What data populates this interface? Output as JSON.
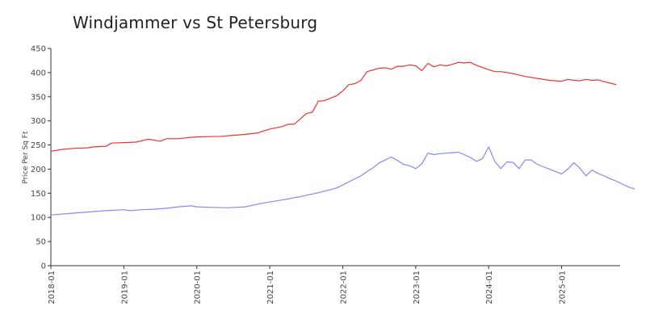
{
  "chart_data": {
    "type": "line",
    "title": "Windjammer vs St Petersburg",
    "xlabel": "",
    "ylabel": "Price Per Sq Ft",
    "ylim": [
      0,
      450
    ],
    "yticks": [
      0,
      50,
      100,
      150,
      200,
      250,
      300,
      350,
      400,
      450
    ],
    "xlim": [
      "2018-01",
      "2025-10"
    ],
    "xticks": [
      "2018-01",
      "2019-01",
      "2020-01",
      "2021-01",
      "2022-01",
      "2023-01",
      "2024-01",
      "2025-01"
    ],
    "grid": false,
    "legend": "none",
    "series": [
      {
        "color": "#ee3333",
        "points": [
          [
            "2018-01",
            237
          ],
          [
            "2018-03",
            241
          ],
          [
            "2018-05",
            243
          ],
          [
            "2018-07",
            244
          ],
          [
            "2018-08",
            246
          ],
          [
            "2018-10",
            247
          ],
          [
            "2018-11",
            254
          ],
          [
            "2019-01",
            255
          ],
          [
            "2019-03",
            256
          ],
          [
            "2019-05",
            262
          ],
          [
            "2019-07",
            258
          ],
          [
            "2019-08",
            263
          ],
          [
            "2019-10",
            263
          ],
          [
            "2019-12",
            266
          ],
          [
            "2020-02",
            267
          ],
          [
            "2020-05",
            268
          ],
          [
            "2020-07",
            270
          ],
          [
            "2020-09",
            272
          ],
          [
            "2020-11",
            275
          ],
          [
            "2021-01",
            283
          ],
          [
            "2021-03",
            288
          ],
          [
            "2021-04",
            293
          ],
          [
            "2021-05",
            293
          ],
          [
            "2021-07",
            315
          ],
          [
            "2021-08",
            318
          ],
          [
            "2021-09",
            341
          ],
          [
            "2021-10",
            342
          ],
          [
            "2021-11",
            347
          ],
          [
            "2021-12",
            352
          ],
          [
            "2022-01",
            362
          ],
          [
            "2022-02",
            375
          ],
          [
            "2022-03",
            377
          ],
          [
            "2022-04",
            384
          ],
          [
            "2022-05",
            402
          ],
          [
            "2022-07",
            409
          ],
          [
            "2022-08",
            410
          ],
          [
            "2022-09",
            407
          ],
          [
            "2022-10",
            413
          ],
          [
            "2022-11",
            413
          ],
          [
            "2022-12",
            416
          ],
          [
            "2023-01",
            414
          ],
          [
            "2023-02",
            404
          ],
          [
            "2023-03",
            419
          ],
          [
            "2023-04",
            412
          ],
          [
            "2023-05",
            416
          ],
          [
            "2023-06",
            414
          ],
          [
            "2023-07",
            417
          ],
          [
            "2023-08",
            421
          ],
          [
            "2023-09",
            420
          ],
          [
            "2023-10",
            421
          ],
          [
            "2023-11",
            415
          ],
          [
            "2024-01",
            406
          ],
          [
            "2024-02",
            402
          ],
          [
            "2024-03",
            402
          ],
          [
            "2024-05",
            398
          ],
          [
            "2024-07",
            392
          ],
          [
            "2024-09",
            388
          ],
          [
            "2024-11",
            384
          ],
          [
            "2025-01",
            382
          ],
          [
            "2025-02",
            386
          ],
          [
            "2025-03",
            384
          ],
          [
            "2025-04",
            383
          ],
          [
            "2025-05",
            386
          ],
          [
            "2025-06",
            384
          ],
          [
            "2025-07",
            385
          ],
          [
            "2025-08",
            381
          ],
          [
            "2025-09",
            378
          ],
          [
            "2025-10",
            375
          ]
        ]
      },
      {
        "color": "#8888ee",
        "points": [
          [
            "2018-01",
            105
          ],
          [
            "2018-04",
            108
          ],
          [
            "2018-07",
            111
          ],
          [
            "2018-10",
            114
          ],
          [
            "2019-01",
            116
          ],
          [
            "2019-02",
            114
          ],
          [
            "2019-04",
            116
          ],
          [
            "2019-06",
            117
          ],
          [
            "2019-08",
            119
          ],
          [
            "2019-10",
            122
          ],
          [
            "2019-12",
            124
          ],
          [
            "2020-01",
            122
          ],
          [
            "2020-03",
            121
          ],
          [
            "2020-06",
            120
          ],
          [
            "2020-09",
            122
          ],
          [
            "2020-12",
            130
          ],
          [
            "2021-03",
            136
          ],
          [
            "2021-06",
            143
          ],
          [
            "2021-09",
            151
          ],
          [
            "2021-12",
            161
          ],
          [
            "2022-03",
            180
          ],
          [
            "2022-04",
            186
          ],
          [
            "2022-05",
            195
          ],
          [
            "2022-06",
            203
          ],
          [
            "2022-07",
            213
          ],
          [
            "2022-08",
            219
          ],
          [
            "2022-09",
            225
          ],
          [
            "2022-10",
            218
          ],
          [
            "2022-11",
            210
          ],
          [
            "2022-12",
            207
          ],
          [
            "2023-01",
            201
          ],
          [
            "2023-02",
            211
          ],
          [
            "2023-03",
            233
          ],
          [
            "2023-04",
            230
          ],
          [
            "2023-05",
            232
          ],
          [
            "2023-06",
            233
          ],
          [
            "2023-07",
            234
          ],
          [
            "2023-08",
            235
          ],
          [
            "2023-09",
            230
          ],
          [
            "2023-10",
            224
          ],
          [
            "2023-11",
            216
          ],
          [
            "2023-12",
            222
          ],
          [
            "2024-01",
            246
          ],
          [
            "2024-02",
            216
          ],
          [
            "2024-03",
            201
          ],
          [
            "2024-04",
            215
          ],
          [
            "2024-05",
            214
          ],
          [
            "2024-06",
            201
          ],
          [
            "2024-07",
            219
          ],
          [
            "2024-08",
            219
          ],
          [
            "2024-09",
            210
          ],
          [
            "2024-10",
            205
          ],
          [
            "2024-11",
            200
          ],
          [
            "2024-12",
            195
          ],
          [
            "2025-01",
            190
          ],
          [
            "2025-02",
            200
          ],
          [
            "2025-03",
            213
          ],
          [
            "2025-04",
            202
          ],
          [
            "2025-05",
            186
          ],
          [
            "2025-06",
            198
          ],
          [
            "2025-07",
            191
          ],
          [
            "2025-08",
            186
          ],
          [
            "2025-09",
            180
          ],
          [
            "2025-10",
            175
          ],
          [
            "2025-11",
            169
          ],
          [
            "2025-12",
            163
          ],
          [
            "2026-01",
            159
          ]
        ]
      }
    ]
  }
}
